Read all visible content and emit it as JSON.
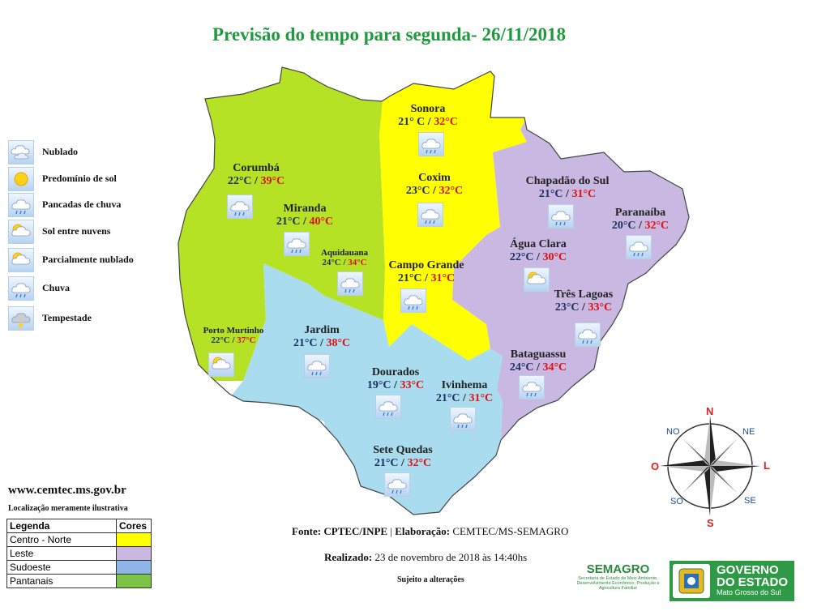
{
  "title": "Previsão do tempo para segunda- 26/11/2018",
  "colors": {
    "centro_norte": "#ffff00",
    "leste": "#c8b8e2",
    "sudoeste": "#a8dcee",
    "pantanais": "#b5e225",
    "title_green": "#1e9a3c",
    "max_red": "#e01010"
  },
  "legend": [
    {
      "label": "Nublado",
      "icon": "cloudy-icon"
    },
    {
      "label": "Predomínio de sol",
      "icon": "sun-icon"
    },
    {
      "label": "Pancadas de chuva",
      "icon": "showers-icon"
    },
    {
      "label": "Sol entre nuvens",
      "icon": "sun-cloud-icon"
    },
    {
      "label": "Parcialmente nublado",
      "icon": "partly-cloudy-icon"
    },
    {
      "label": "Chuva",
      "icon": "rain-icon"
    },
    {
      "label": "Tempestade",
      "icon": "storm-icon"
    }
  ],
  "cities": [
    {
      "name": "Sonora",
      "min": "21° C",
      "max": "32°C",
      "icon": "rain-icon"
    },
    {
      "name": "Coxim",
      "min": "23°C",
      "max": "32°C",
      "icon": "rain-icon"
    },
    {
      "name": "Corumbá",
      "min": "22°C",
      "max": "39°C",
      "icon": "rain-icon"
    },
    {
      "name": "Miranda",
      "min": "21°C",
      "max": "40°C",
      "icon": "rain-icon"
    },
    {
      "name": "Aquidauana",
      "min": "24°C",
      "max": "34°C",
      "icon": "rain-icon"
    },
    {
      "name": "Campo Grande",
      "min": "21°C",
      "max": "31°C",
      "icon": "rain-icon"
    },
    {
      "name": "Chapadão do Sul",
      "min": "21°C",
      "max": "31°C",
      "icon": "rain-icon"
    },
    {
      "name": "Paranaíba",
      "min": "20°C",
      "max": "32°C",
      "icon": "rain-icon"
    },
    {
      "name": "Água Clara",
      "min": "22°C",
      "max": "30°C",
      "icon": "sun-cloud-icon"
    },
    {
      "name": "Três Lagoas",
      "min": "23°C",
      "max": "33°C",
      "icon": "rain-icon"
    },
    {
      "name": "Bataguassu",
      "min": "24°C",
      "max": "34°C",
      "icon": "rain-icon"
    },
    {
      "name": "Porto Murtinho",
      "min": "22°C",
      "max": "37°C",
      "icon": "sun-cloud-icon"
    },
    {
      "name": "Jardim",
      "min": "21°C",
      "max": "38°C",
      "icon": "rain-icon"
    },
    {
      "name": "Dourados",
      "min": "19°C",
      "max": "33°C",
      "icon": "rain-icon"
    },
    {
      "name": "Ivinhema",
      "min": "21°C",
      "max": "31°C",
      "icon": "rain-icon"
    },
    {
      "name": "Sete Quedas",
      "min": "21°C",
      "max": "32°C",
      "icon": "rain-icon"
    }
  ],
  "site": "www.cemtec.ms.gov.br",
  "note": "Localização meramente ilustrativa",
  "color_table": {
    "header_region": "Legenda",
    "header_color": "Cores",
    "rows": [
      "Centro - Norte",
      "Leste",
      "Sudoeste",
      "Pantanais"
    ]
  },
  "fonte": {
    "label": "Fonte:",
    "source": "CPTEC/INPE",
    "sep": "|",
    "elab_label": "Elaboração:",
    "elab": "CEMTEC/MS-SEMAGRO"
  },
  "realizado": {
    "label": "Realizado:",
    "date": "23 de novembro de 2018 às  14:40hs"
  },
  "sujeito": "Sujeito a alterações",
  "compass": {
    "n": "N",
    "s": "S",
    "l": "L",
    "o": "O",
    "ne": "NE",
    "no": "NO",
    "se": "SE",
    "so": "SO"
  },
  "semagro": {
    "name": "SEMAGRO",
    "desc": "Secretaria de Estado de Meio Ambiente, Desenvolvimento Econômico, Produção e Agricultura Familiar"
  },
  "governo": {
    "line1": "GOVERNO",
    "line2": "DO ESTADO",
    "line3": "Mato Grosso do Sul"
  }
}
